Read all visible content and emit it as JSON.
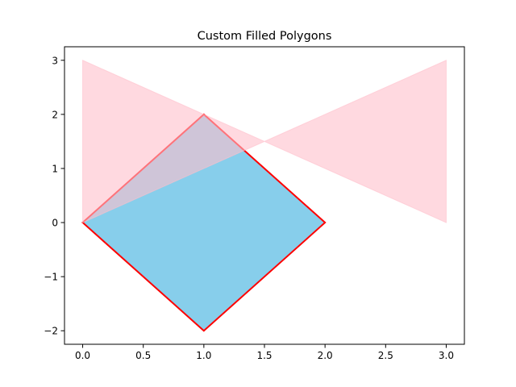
{
  "chart_data": {
    "type": "area",
    "title": "Custom Filled Polygons",
    "xlabel": "",
    "ylabel": "",
    "xlim": [
      -0.15,
      3.15
    ],
    "ylim": [
      -2.25,
      3.25
    ],
    "grid": false,
    "x_ticks": [
      0.0,
      0.5,
      1.0,
      1.5,
      2.0,
      2.5,
      3.0
    ],
    "x_tick_labels": [
      "0.0",
      "0.5",
      "1.0",
      "1.5",
      "2.0",
      "2.5",
      "3.0"
    ],
    "y_ticks": [
      -2,
      -1,
      0,
      1,
      2,
      3
    ],
    "y_tick_labels": [
      "−2",
      "−1",
      "0",
      "1",
      "2",
      "3"
    ],
    "polygons": [
      {
        "points": [
          [
            0,
            0
          ],
          [
            1,
            2
          ],
          [
            2,
            0
          ],
          [
            1,
            -2
          ]
        ],
        "fill": "#87ceeb",
        "fill_opacity": 1.0,
        "edge": "#ff0000",
        "edge_width": 2
      },
      {
        "points": [
          [
            0,
            0
          ],
          [
            0,
            3
          ],
          [
            3,
            0
          ],
          [
            3,
            3
          ]
        ],
        "fill": "#ffc0cb",
        "fill_opacity": 0.6,
        "edge": "#ffc0cb",
        "edge_width": 1
      }
    ]
  }
}
